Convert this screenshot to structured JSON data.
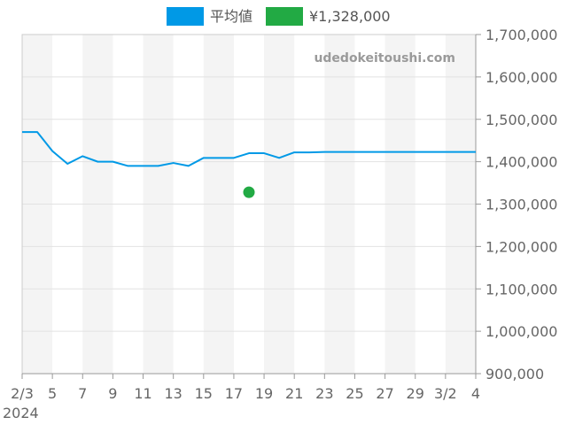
{
  "chart_data": {
    "type": "line",
    "title": "",
    "xlabel": "",
    "ylabel": "",
    "watermark": "udedokeitoushi.com",
    "legend": {
      "placement": "top-center",
      "entries": [
        {
          "label": "平均値",
          "color": "#0099e6"
        },
        {
          "label": "¥1,328,000",
          "color": "#22aa44"
        }
      ]
    },
    "year_label": "2024",
    "ylim": [
      900000,
      1700000
    ],
    "y_ticks": [
      {
        "value": 1700000,
        "label": "1,700,000"
      },
      {
        "value": 1600000,
        "label": "1,600,000"
      },
      {
        "value": 1500000,
        "label": "1,500,000"
      },
      {
        "value": 1400000,
        "label": "1,400,000"
      },
      {
        "value": 1300000,
        "label": "1,300,000"
      },
      {
        "value": 1200000,
        "label": "1,200,000"
      },
      {
        "value": 1100000,
        "label": "1,100,000"
      },
      {
        "value": 1000000,
        "label": "1,000,000"
      },
      {
        "value": 900000,
        "label": "900,000"
      }
    ],
    "x_dates": [
      "2/3",
      "2/4",
      "2/5",
      "2/6",
      "2/7",
      "2/8",
      "2/9",
      "2/10",
      "2/11",
      "2/12",
      "2/13",
      "2/14",
      "2/15",
      "2/16",
      "2/17",
      "2/18",
      "2/19",
      "2/20",
      "2/21",
      "2/22",
      "2/23",
      "2/24",
      "2/25",
      "2/26",
      "2/27",
      "2/28",
      "2/29",
      "3/1",
      "3/2",
      "3/3",
      "3/4"
    ],
    "x_ticks": [
      {
        "date": "2/3",
        "label": "2/3"
      },
      {
        "date": "2/5",
        "label": "5"
      },
      {
        "date": "2/7",
        "label": "7"
      },
      {
        "date": "2/9",
        "label": "9"
      },
      {
        "date": "2/11",
        "label": "11"
      },
      {
        "date": "2/13",
        "label": "13"
      },
      {
        "date": "2/15",
        "label": "15"
      },
      {
        "date": "2/17",
        "label": "17"
      },
      {
        "date": "2/19",
        "label": "19"
      },
      {
        "date": "2/21",
        "label": "21"
      },
      {
        "date": "2/23",
        "label": "23"
      },
      {
        "date": "2/25",
        "label": "25"
      },
      {
        "date": "2/27",
        "label": "27"
      },
      {
        "date": "2/29",
        "label": "29"
      },
      {
        "date": "3/2",
        "label": "3/2"
      },
      {
        "date": "3/4",
        "label": "4"
      }
    ],
    "week_bands": [
      [
        "2/3",
        "2/5"
      ],
      [
        "2/7",
        "2/9"
      ],
      [
        "2/11",
        "2/13"
      ],
      [
        "2/15",
        "2/17"
      ],
      [
        "2/19",
        "2/21"
      ],
      [
        "2/23",
        "2/25"
      ],
      [
        "2/27",
        "2/29"
      ],
      [
        "3/2",
        "3/4"
      ]
    ],
    "series": [
      {
        "name": "平均値",
        "type": "line",
        "color": "#0099e6",
        "x": [
          "2/3",
          "2/4",
          "2/5",
          "2/6",
          "2/7",
          "2/8",
          "2/9",
          "2/10",
          "2/11",
          "2/12",
          "2/13",
          "2/14",
          "2/15",
          "2/16",
          "2/17",
          "2/18",
          "2/19",
          "2/20",
          "2/21",
          "2/22",
          "2/23",
          "2/24",
          "2/25",
          "2/26",
          "2/27",
          "2/28",
          "2/29",
          "3/1",
          "3/2",
          "3/3",
          "3/4"
        ],
        "values": [
          1470000,
          1470000,
          1425000,
          1395000,
          1413000,
          1400000,
          1400000,
          1390000,
          1390000,
          1390000,
          1397000,
          1390000,
          1409000,
          1409000,
          1409000,
          1420000,
          1420000,
          1409000,
          1422000,
          1422000,
          1423000,
          1423000,
          1423000,
          1423000,
          1423000,
          1423000,
          1423000,
          1423000,
          1423000,
          1423000,
          1423000
        ]
      },
      {
        "name": "¥1,328,000",
        "type": "scatter",
        "color": "#22aa44",
        "x": [
          "2/18"
        ],
        "values": [
          1328000
        ]
      }
    ]
  }
}
